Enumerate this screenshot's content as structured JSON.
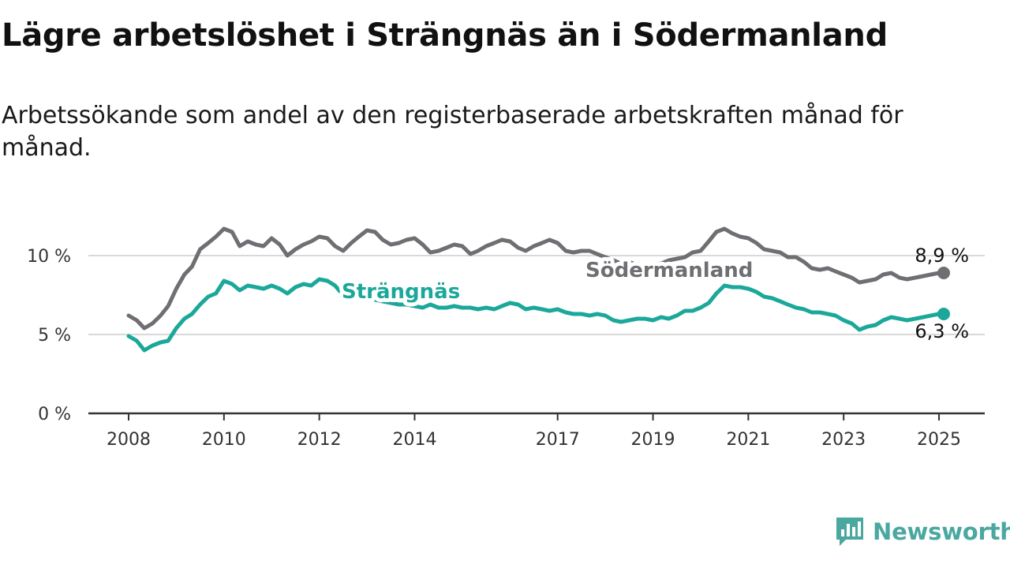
{
  "header": {
    "title": "Lägre arbetslöshet i Strängnäs än i Södermanland",
    "subtitle": "Arbetssökande som andel av den registerbaserade arbetskraften månad för månad."
  },
  "branding": {
    "logo_text": "Newsworthy"
  },
  "chart_data": {
    "type": "line",
    "title": "Lägre arbetslöshet i Strängnäs än i Södermanland",
    "subtitle": "Arbetssökande som andel av den registerbaserade arbetskraften månad för månad.",
    "xlim": [
      2008,
      2025.5
    ],
    "ylim": [
      0,
      12
    ],
    "x_ticks": [
      2008,
      2010,
      2012,
      2014,
      2017,
      2019,
      2021,
      2023,
      2025
    ],
    "y_ticks": [
      0,
      5,
      10
    ],
    "y_tick_labels": [
      "0 %",
      "5 %",
      "10 %"
    ],
    "grid": true,
    "legend": "inline labels",
    "series": [
      {
        "name": "Södermanland",
        "color": "#6e6e73",
        "end_label": "8,9 %",
        "points": [
          [
            2008.0,
            6.2
          ],
          [
            2008.17,
            5.9
          ],
          [
            2008.33,
            5.4
          ],
          [
            2008.5,
            5.7
          ],
          [
            2008.67,
            6.2
          ],
          [
            2008.83,
            6.8
          ],
          [
            2009.0,
            7.9
          ],
          [
            2009.17,
            8.8
          ],
          [
            2009.33,
            9.3
          ],
          [
            2009.5,
            10.4
          ],
          [
            2009.67,
            10.8
          ],
          [
            2009.83,
            11.2
          ],
          [
            2010.0,
            11.7
          ],
          [
            2010.17,
            11.5
          ],
          [
            2010.33,
            10.6
          ],
          [
            2010.5,
            10.9
          ],
          [
            2010.67,
            10.7
          ],
          [
            2010.83,
            10.6
          ],
          [
            2011.0,
            11.1
          ],
          [
            2011.17,
            10.7
          ],
          [
            2011.33,
            10.0
          ],
          [
            2011.5,
            10.4
          ],
          [
            2011.67,
            10.7
          ],
          [
            2011.83,
            10.9
          ],
          [
            2012.0,
            11.2
          ],
          [
            2012.17,
            11.1
          ],
          [
            2012.33,
            10.6
          ],
          [
            2012.5,
            10.3
          ],
          [
            2012.67,
            10.8
          ],
          [
            2012.83,
            11.2
          ],
          [
            2013.0,
            11.6
          ],
          [
            2013.17,
            11.5
          ],
          [
            2013.33,
            11.0
          ],
          [
            2013.5,
            10.7
          ],
          [
            2013.67,
            10.8
          ],
          [
            2013.83,
            11.0
          ],
          [
            2014.0,
            11.1
          ],
          [
            2014.17,
            10.7
          ],
          [
            2014.33,
            10.2
          ],
          [
            2014.5,
            10.3
          ],
          [
            2014.67,
            10.5
          ],
          [
            2014.83,
            10.7
          ],
          [
            2015.0,
            10.6
          ],
          [
            2015.17,
            10.1
          ],
          [
            2015.33,
            10.3
          ],
          [
            2015.5,
            10.6
          ],
          [
            2015.67,
            10.8
          ],
          [
            2015.83,
            11.0
          ],
          [
            2016.0,
            10.9
          ],
          [
            2016.17,
            10.5
          ],
          [
            2016.33,
            10.3
          ],
          [
            2016.5,
            10.6
          ],
          [
            2016.67,
            10.8
          ],
          [
            2016.83,
            11.0
          ],
          [
            2017.0,
            10.8
          ],
          [
            2017.17,
            10.3
          ],
          [
            2017.33,
            10.2
          ],
          [
            2017.5,
            10.3
          ],
          [
            2017.67,
            10.3
          ],
          [
            2017.83,
            10.1
          ],
          [
            2018.0,
            9.9
          ],
          [
            2018.17,
            9.7
          ],
          [
            2018.33,
            9.5
          ],
          [
            2018.5,
            9.6
          ],
          [
            2018.67,
            9.4
          ],
          [
            2018.83,
            9.3
          ],
          [
            2019.0,
            9.4
          ],
          [
            2019.17,
            9.5
          ],
          [
            2019.33,
            9.7
          ],
          [
            2019.5,
            9.8
          ],
          [
            2019.67,
            9.9
          ],
          [
            2019.83,
            10.2
          ],
          [
            2020.0,
            10.3
          ],
          [
            2020.17,
            10.9
          ],
          [
            2020.33,
            11.5
          ],
          [
            2020.5,
            11.7
          ],
          [
            2020.67,
            11.4
          ],
          [
            2020.83,
            11.2
          ],
          [
            2021.0,
            11.1
          ],
          [
            2021.17,
            10.8
          ],
          [
            2021.33,
            10.4
          ],
          [
            2021.5,
            10.3
          ],
          [
            2021.67,
            10.2
          ],
          [
            2021.83,
            9.9
          ],
          [
            2022.0,
            9.9
          ],
          [
            2022.17,
            9.6
          ],
          [
            2022.33,
            9.2
          ],
          [
            2022.5,
            9.1
          ],
          [
            2022.67,
            9.2
          ],
          [
            2022.83,
            9.0
          ],
          [
            2023.0,
            8.8
          ],
          [
            2023.17,
            8.6
          ],
          [
            2023.33,
            8.3
          ],
          [
            2023.5,
            8.4
          ],
          [
            2023.67,
            8.5
          ],
          [
            2023.83,
            8.8
          ],
          [
            2024.0,
            8.9
          ],
          [
            2024.17,
            8.6
          ],
          [
            2024.33,
            8.5
          ],
          [
            2024.5,
            8.6
          ],
          [
            2024.67,
            8.7
          ],
          [
            2024.83,
            8.8
          ],
          [
            2025.0,
            8.9
          ]
        ]
      },
      {
        "name": "Strängnäs",
        "color": "#1ba89a",
        "end_label": "6,3 %",
        "points": [
          [
            2008.0,
            4.9
          ],
          [
            2008.17,
            4.6
          ],
          [
            2008.33,
            4.0
          ],
          [
            2008.5,
            4.3
          ],
          [
            2008.67,
            4.5
          ],
          [
            2008.83,
            4.6
          ],
          [
            2009.0,
            5.4
          ],
          [
            2009.17,
            6.0
          ],
          [
            2009.33,
            6.3
          ],
          [
            2009.5,
            6.9
          ],
          [
            2009.67,
            7.4
          ],
          [
            2009.83,
            7.6
          ],
          [
            2010.0,
            8.4
          ],
          [
            2010.17,
            8.2
          ],
          [
            2010.33,
            7.8
          ],
          [
            2010.5,
            8.1
          ],
          [
            2010.67,
            8.0
          ],
          [
            2010.83,
            7.9
          ],
          [
            2011.0,
            8.1
          ],
          [
            2011.17,
            7.9
          ],
          [
            2011.33,
            7.6
          ],
          [
            2011.5,
            8.0
          ],
          [
            2011.67,
            8.2
          ],
          [
            2011.83,
            8.1
          ],
          [
            2012.0,
            8.5
          ],
          [
            2012.17,
            8.4
          ],
          [
            2012.33,
            8.1
          ],
          [
            2012.5,
            7.5
          ],
          [
            2012.67,
            7.4
          ],
          [
            2012.83,
            7.5
          ],
          [
            2013.0,
            7.4
          ],
          [
            2013.17,
            7.2
          ],
          [
            2013.33,
            7.1
          ],
          [
            2013.5,
            7.0
          ],
          [
            2013.67,
            6.9
          ],
          [
            2013.83,
            6.9
          ],
          [
            2014.0,
            6.8
          ],
          [
            2014.17,
            6.7
          ],
          [
            2014.33,
            6.9
          ],
          [
            2014.5,
            6.7
          ],
          [
            2014.67,
            6.7
          ],
          [
            2014.83,
            6.8
          ],
          [
            2015.0,
            6.7
          ],
          [
            2015.17,
            6.7
          ],
          [
            2015.33,
            6.6
          ],
          [
            2015.5,
            6.7
          ],
          [
            2015.67,
            6.6
          ],
          [
            2015.83,
            6.8
          ],
          [
            2016.0,
            7.0
          ],
          [
            2016.17,
            6.9
          ],
          [
            2016.33,
            6.6
          ],
          [
            2016.5,
            6.7
          ],
          [
            2016.67,
            6.6
          ],
          [
            2016.83,
            6.5
          ],
          [
            2017.0,
            6.6
          ],
          [
            2017.17,
            6.4
          ],
          [
            2017.33,
            6.3
          ],
          [
            2017.5,
            6.3
          ],
          [
            2017.67,
            6.2
          ],
          [
            2017.83,
            6.3
          ],
          [
            2018.0,
            6.2
          ],
          [
            2018.17,
            5.9
          ],
          [
            2018.33,
            5.8
          ],
          [
            2018.5,
            5.9
          ],
          [
            2018.67,
            6.0
          ],
          [
            2018.83,
            6.0
          ],
          [
            2019.0,
            5.9
          ],
          [
            2019.17,
            6.1
          ],
          [
            2019.33,
            6.0
          ],
          [
            2019.5,
            6.2
          ],
          [
            2019.67,
            6.5
          ],
          [
            2019.83,
            6.5
          ],
          [
            2020.0,
            6.7
          ],
          [
            2020.17,
            7.0
          ],
          [
            2020.33,
            7.6
          ],
          [
            2020.5,
            8.1
          ],
          [
            2020.67,
            8.0
          ],
          [
            2020.83,
            8.0
          ],
          [
            2021.0,
            7.9
          ],
          [
            2021.17,
            7.7
          ],
          [
            2021.33,
            7.4
          ],
          [
            2021.5,
            7.3
          ],
          [
            2021.67,
            7.1
          ],
          [
            2021.83,
            6.9
          ],
          [
            2022.0,
            6.7
          ],
          [
            2022.17,
            6.6
          ],
          [
            2022.33,
            6.4
          ],
          [
            2022.5,
            6.4
          ],
          [
            2022.67,
            6.3
          ],
          [
            2022.83,
            6.2
          ],
          [
            2023.0,
            5.9
          ],
          [
            2023.17,
            5.7
          ],
          [
            2023.33,
            5.3
          ],
          [
            2023.5,
            5.5
          ],
          [
            2023.67,
            5.6
          ],
          [
            2023.83,
            5.9
          ],
          [
            2024.0,
            6.1
          ],
          [
            2024.17,
            6.0
          ],
          [
            2024.33,
            5.9
          ],
          [
            2024.5,
            6.0
          ],
          [
            2024.67,
            6.1
          ],
          [
            2024.83,
            6.2
          ],
          [
            2025.0,
            6.3
          ]
        ]
      }
    ]
  }
}
